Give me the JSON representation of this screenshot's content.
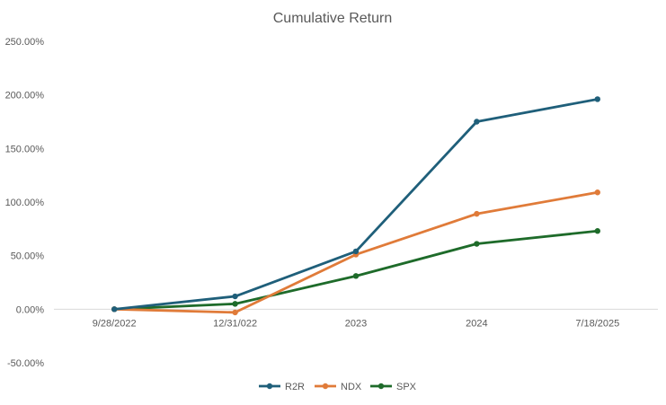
{
  "chart_data": {
    "type": "line",
    "title": "Cumulative Return",
    "xlabel": "",
    "ylabel": "",
    "categories": [
      "9/28/2022",
      "12/31/022",
      "2023",
      "2024",
      "7/18/2025"
    ],
    "ylim": [
      -0.5,
      2.5
    ],
    "yticks": [
      -0.5,
      0,
      0.5,
      1.0,
      1.5,
      2.0,
      2.5
    ],
    "ytick_labels": [
      "-50.00%",
      "0.00%",
      "50.00%",
      "100.00%",
      "150.00%",
      "200.00%",
      "250.00%"
    ],
    "grid": false,
    "legend_position": "bottom",
    "series": [
      {
        "name": "R2R",
        "color": "#1f5f7a",
        "values": [
          0.0,
          0.12,
          0.54,
          1.75,
          1.96
        ]
      },
      {
        "name": "NDX",
        "color": "#e07b39",
        "values": [
          0.0,
          -0.03,
          0.51,
          0.89,
          1.09
        ]
      },
      {
        "name": "SPX",
        "color": "#1e6b2a",
        "values": [
          0.0,
          0.05,
          0.31,
          0.61,
          0.73
        ]
      }
    ]
  }
}
